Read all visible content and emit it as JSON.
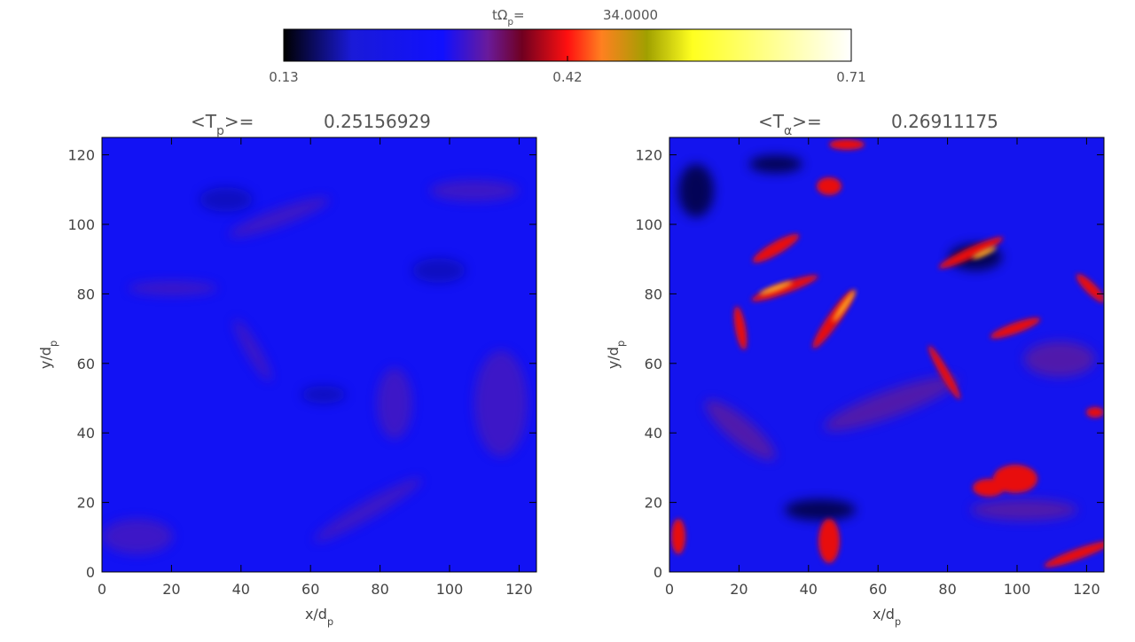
{
  "header": {
    "time_label": "tΩ",
    "time_sub": "p",
    "time_suffix": "=",
    "time_value": {
      "value": 34,
      "label": "34.0000"
    }
  },
  "colorbar": {
    "clim": [
      0.13,
      0.71
    ],
    "ticks": [
      0.13,
      0.42,
      0.71
    ]
  },
  "chart_data": [
    {
      "type": "heatmap",
      "title": "<T",
      "title_sub": "p",
      "title_suffix": ">=",
      "mean": 0.25156929,
      "xlabel": "x/d",
      "xlabel_sub": "p",
      "ylabel": "y/d",
      "ylabel_sub": "p",
      "xlim": [
        0,
        125
      ],
      "ylim": [
        0,
        125
      ],
      "xticks": [
        0,
        20,
        40,
        60,
        80,
        100,
        120
      ],
      "yticks": [
        0,
        20,
        40,
        60,
        80,
        100,
        120
      ]
    },
    {
      "type": "heatmap",
      "title": "<T",
      "title_sub": "α",
      "title_suffix": ">=",
      "mean": 0.26911175,
      "xlabel": "x/d",
      "xlabel_sub": "p",
      "ylabel": "y/d",
      "ylabel_sub": "p",
      "xlim": [
        0,
        125
      ],
      "ylim": [
        0,
        125
      ],
      "xticks": [
        0,
        20,
        40,
        60,
        80,
        100,
        120
      ],
      "yticks": [
        0,
        20,
        40,
        60,
        80,
        100,
        120
      ]
    }
  ]
}
